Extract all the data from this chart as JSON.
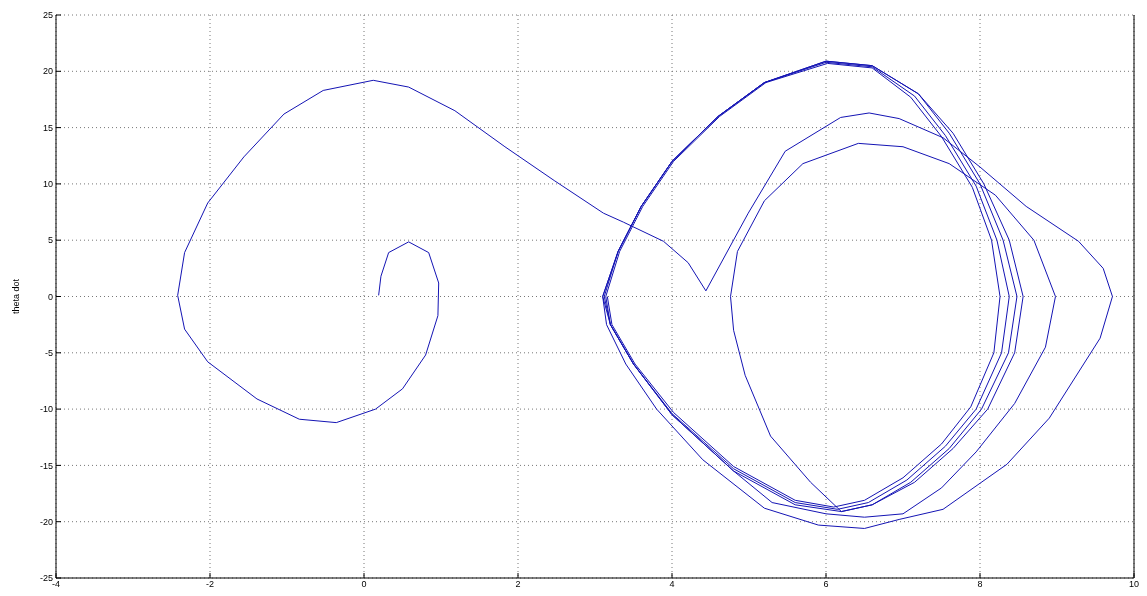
{
  "chart_data": {
    "type": "line",
    "ylabel": "theta dot",
    "x": [
      0.19,
      0.22,
      0.32,
      0.58,
      0.84,
      0.97,
      0.96,
      0.8,
      0.5,
      0.15,
      -0.36,
      -0.84,
      -1.39,
      -2.03,
      -2.33,
      -2.42,
      -2.33,
      -2.03,
      -1.56,
      -1.04,
      -0.53,
      0.12,
      0.58,
      1.18,
      1.83,
      2.47,
      3.11,
      3.37,
      3.89,
      4.21,
      4.44,
      4.99,
      5.47,
      6.19,
      6.56,
      6.95,
      7.52,
      8.0,
      8.6,
      9.28,
      9.6,
      9.72,
      9.56,
      8.9,
      8.35,
      7.52,
      6.95,
      6.5,
      5.9,
      5.2,
      4.4,
      3.8,
      3.4,
      3.15,
      3.1,
      3.3,
      3.6,
      4.0,
      4.6,
      5.2,
      6.0,
      6.6,
      7.2,
      7.65,
      8.05,
      8.38,
      8.56,
      8.45,
      8.1,
      7.65,
      7.15,
      6.6,
      6.2,
      5.8,
      5.28,
      4.95,
      4.8,
      4.76,
      4.85,
      5.2,
      5.7,
      6.42,
      7.0,
      7.6,
      8.2,
      8.7,
      8.98,
      8.85,
      8.45,
      7.95,
      7.5,
      7.0,
      6.5,
      6.0,
      5.3,
      4.8,
      4.0,
      3.5,
      3.2,
      3.1,
      3.3,
      3.6,
      4.0,
      4.6,
      5.2,
      6.0,
      6.6,
      7.2,
      7.6,
      8.0,
      8.3,
      8.48,
      8.37,
      8.02,
      7.6,
      7.1,
      6.6,
      6.2,
      5.6,
      4.8,
      4.0,
      3.5,
      3.2,
      3.12,
      3.3,
      3.6,
      4.0,
      4.6,
      5.2,
      6.0,
      6.6,
      7.15,
      7.55,
      7.95,
      8.22,
      8.38,
      8.28,
      7.95,
      7.55,
      7.05,
      6.55,
      6.15,
      5.6,
      4.8,
      4.0,
      3.5,
      3.2,
      3.14,
      3.32,
      3.62,
      4.02,
      4.62,
      5.22,
      6.02,
      6.6,
      7.1,
      7.5,
      7.9,
      8.15,
      8.26,
      8.18,
      7.88,
      7.5,
      7.0,
      6.5,
      6.1,
      5.6,
      4.8,
      4.02,
      3.52,
      3.22,
      3.16
    ],
    "values": [
      0.1,
      1.8,
      3.9,
      4.85,
      3.9,
      1.2,
      -1.7,
      -5.2,
      -8.2,
      -10,
      -11.2,
      -10.9,
      -9.1,
      -5.8,
      -2.9,
      0.1,
      3.9,
      8.3,
      12.4,
      16.2,
      18.3,
      19.2,
      18.6,
      16.5,
      13.3,
      10.3,
      7.4,
      6.6,
      4.9,
      3.0,
      0.5,
      7.4,
      12.9,
      15.9,
      16.3,
      15.8,
      14.1,
      11.5,
      8,
      4.9,
      2.5,
      0,
      -3.7,
      -10.8,
      -14.9,
      -18.9,
      -19.8,
      -20.6,
      -20.3,
      -18.8,
      -14.5,
      -10,
      -6,
      -2.5,
      0,
      4,
      8,
      12,
      16,
      19,
      20.9,
      20.5,
      18,
      14.5,
      10,
      5,
      0,
      -5,
      -10,
      -13.5,
      -16.5,
      -18.5,
      -19.1,
      -16.5,
      -12.4,
      -7,
      -3,
      0,
      4,
      8.5,
      11.8,
      13.6,
      13.3,
      11.8,
      9,
      5,
      0,
      -4.5,
      -9.5,
      -13.8,
      -17,
      -19.3,
      -19.6,
      -19.3,
      -18.3,
      -15.5,
      -10.5,
      -6,
      -2.5,
      0,
      4,
      8,
      12,
      16,
      19,
      20.9,
      20.5,
      18,
      14.5,
      10,
      5,
      0,
      -5,
      -10,
      -13.5,
      -16.5,
      -18.5,
      -19.1,
      -18.5,
      -15.5,
      -10.5,
      -6,
      -2.5,
      0,
      4,
      8,
      12,
      16,
      19,
      20.8,
      20.4,
      17.8,
      14.3,
      9.8,
      5,
      0,
      -5,
      -10,
      -13.3,
      -16.3,
      -18.3,
      -18.9,
      -18.3,
      -15.3,
      -10.4,
      -6,
      -2.5,
      0,
      4,
      8,
      12,
      16,
      19,
      20.7,
      20.3,
      17.7,
      14.2,
      9.7,
      5,
      0,
      -5,
      -9.8,
      -13.1,
      -16.1,
      -18.1,
      -18.7,
      -18.1,
      -15.1,
      -10.3,
      -6,
      -2.5,
      0
    ],
    "color": "#1414b4",
    "marker": "none",
    "line_style": "solid",
    "xlim": [
      -4,
      10
    ],
    "xticks": [
      -4,
      -2,
      0,
      2,
      4,
      6,
      8,
      10
    ],
    "ylim": [
      -25,
      25
    ],
    "yticks": [
      -25,
      -20,
      -15,
      -10,
      -5,
      0,
      5,
      10,
      15,
      20,
      25
    ],
    "grid": true
  }
}
